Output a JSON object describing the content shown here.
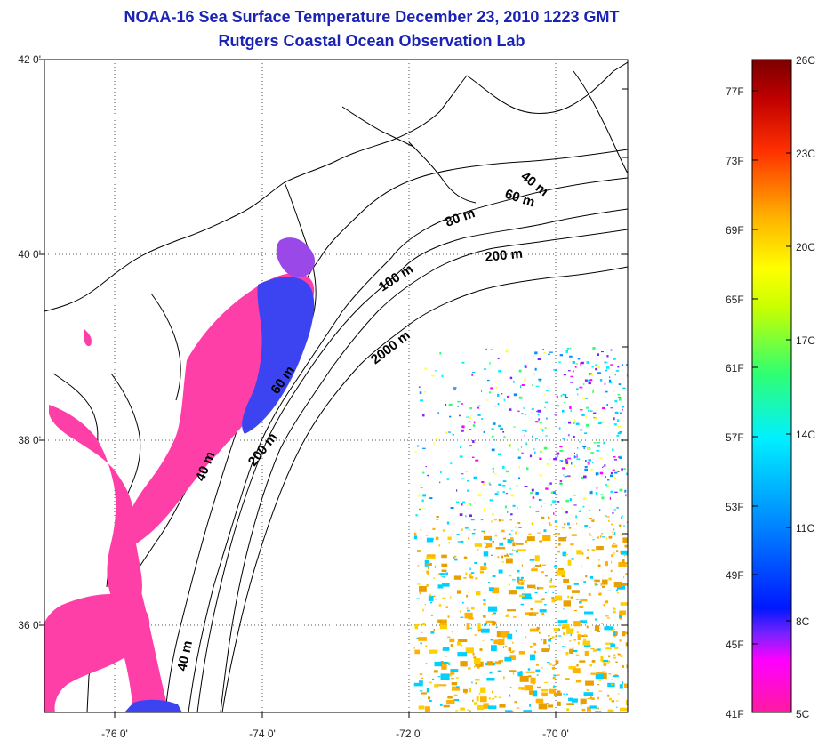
{
  "title": {
    "line1": "NOAA-16 Sea Surface Temperature December 23, 2010 1223 GMT",
    "line2": "Rutgers Coastal Ocean Observation Lab"
  },
  "map": {
    "lat_labels": [
      "42 0'",
      "40 0'",
      "38 0'",
      "36 0'"
    ],
    "lon_labels": [
      "-76 0'",
      "-74 0'",
      "-72 0'",
      "-70 0'"
    ],
    "lat_values": [
      42,
      40,
      38,
      36
    ],
    "lon_values": [
      -76,
      -74,
      -72,
      -70
    ],
    "grid": "dotted",
    "isobath_labels": [
      "40 m",
      "60 m",
      "80 m",
      "200 m",
      "100 m",
      "2000 m",
      "60 m",
      "40 m",
      "200 m",
      "40 m"
    ]
  },
  "colorbar": {
    "fahrenheit": [
      "77F",
      "73F",
      "69F",
      "65F",
      "61F",
      "57F",
      "53F",
      "49F",
      "45F",
      "41F"
    ],
    "celsius": [
      "26C",
      "23C",
      "20C",
      "17C",
      "14C",
      "11C",
      "8C",
      "5C"
    ],
    "colors": [
      "#e0309a",
      "#ff00ff",
      "#7a22ff",
      "#0018ff",
      "#0090ff",
      "#00f0ff",
      "#30ff70",
      "#ffff00",
      "#ffb000",
      "#ff3000",
      "#c00000",
      "#7a0000"
    ]
  },
  "colors": {
    "title": "#1a23b4",
    "cold_water": "#ff3fa8",
    "shelf_water": "#3b44f0"
  }
}
